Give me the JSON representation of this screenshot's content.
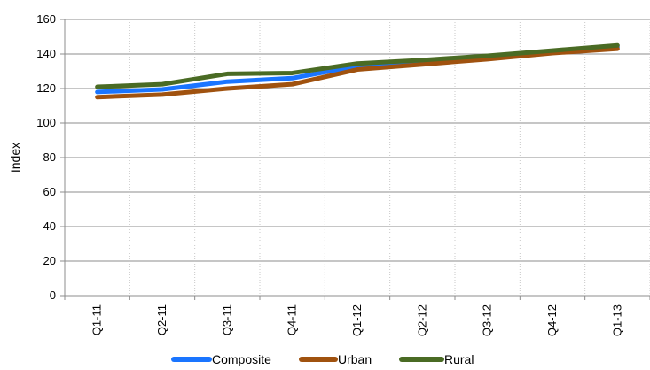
{
  "chart_data": {
    "type": "line",
    "title": "",
    "xlabel": "",
    "ylabel": "Index",
    "ylim": [
      0,
      160
    ],
    "yticks": [
      0,
      20,
      40,
      60,
      80,
      100,
      120,
      140,
      160
    ],
    "categories": [
      "Q1-11",
      "Q2-11",
      "Q3-11",
      "Q4-11",
      "Q1-12",
      "Q2-12",
      "Q3-12",
      "Q4-12",
      "Q1-13"
    ],
    "grid": {
      "horizontal": true,
      "vertical": "dotted"
    },
    "legend_position": "bottom",
    "series": [
      {
        "name": "Composite",
        "color": "#1a75ff",
        "values": [
          118,
          119.5,
          124,
          126,
          133,
          135.5,
          138,
          141,
          144
        ]
      },
      {
        "name": "Urban",
        "color": "#a0520f",
        "values": [
          115,
          116.5,
          120,
          122.5,
          131,
          134,
          137,
          140.5,
          143
        ]
      },
      {
        "name": "Rural",
        "color": "#4a6b24",
        "values": [
          121,
          122.5,
          128.5,
          129,
          134.5,
          136.5,
          139,
          142,
          145
        ]
      }
    ]
  }
}
